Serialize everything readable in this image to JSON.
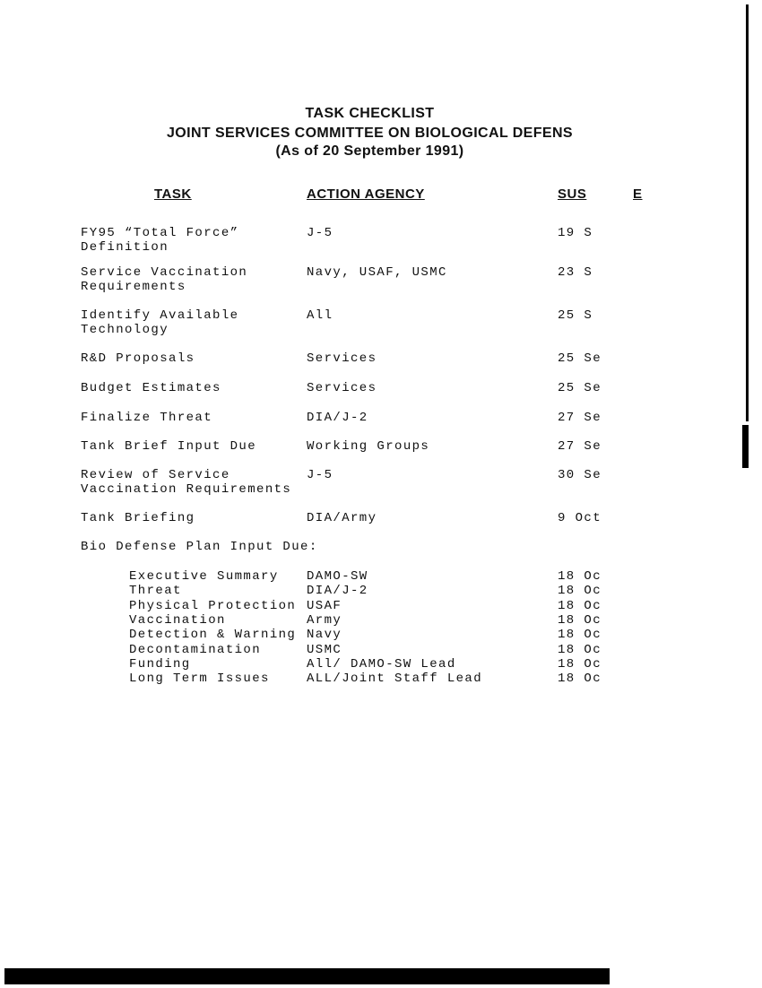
{
  "title": {
    "line1": "TASK CHECKLIST",
    "line2": "JOINT SERVICES COMMITTEE ON BIOLOGICAL DEFENS",
    "line3": "(As of 20 September 1991)"
  },
  "headers": {
    "task": "TASK",
    "agency": "ACTION AGENCY",
    "suspense": "SUS",
    "e": "E"
  },
  "rows": [
    {
      "task": "FY95 “Total Force”\nDefinition",
      "agency": "J-5",
      "suspense": "19 S"
    },
    {
      "task": "Service Vaccination\nRequirements",
      "agency": "Navy, USAF, USMC",
      "suspense": "23 S"
    },
    {
      "task": "Identify Available\nTechnology",
      "agency": "All",
      "suspense": "25 S"
    },
    {
      "task": "R&D Proposals",
      "agency": "Services",
      "suspense": "25 Se"
    },
    {
      "task": "Budget Estimates",
      "agency": "Services",
      "suspense": "25 Se"
    },
    {
      "task": "Finalize Threat",
      "agency": "DIA/J-2",
      "suspense": "27 Se"
    },
    {
      "task": "Tank Brief Input Due",
      "agency": "Working Groups",
      "suspense": "27 Se"
    },
    {
      "task": "Review of Service\nVaccination Requirements",
      "agency": "J-5",
      "suspense": "30 Se"
    },
    {
      "task": "Tank Briefing",
      "agency": "DIA/Army",
      "suspense": "9 Oct"
    }
  ],
  "bio_plan": {
    "label": "Bio Defense Plan Input Due:",
    "items": [
      {
        "task": "Executive Summary",
        "agency": "DAMO-SW",
        "suspense": "18 Oc"
      },
      {
        "task": "Threat",
        "agency": "DIA/J-2",
        "suspense": "18 Oc"
      },
      {
        "task": "Physical Protection",
        "agency": "USAF",
        "suspense": "18 Oc"
      },
      {
        "task": "Vaccination",
        "agency": "Army",
        "suspense": "18 Oc"
      },
      {
        "task": "Detection & Warning",
        "agency": "Navy",
        "suspense": "18 Oc"
      },
      {
        "task": "Decontamination",
        "agency": "USMC",
        "suspense": "18 Oc"
      },
      {
        "task": "Funding",
        "agency": "All/ DAMO-SW Lead",
        "suspense": "18 Oc"
      },
      {
        "task": "Long Term Issues",
        "agency": "ALL/Joint Staff Lead",
        "suspense": "18 Oc"
      }
    ]
  }
}
